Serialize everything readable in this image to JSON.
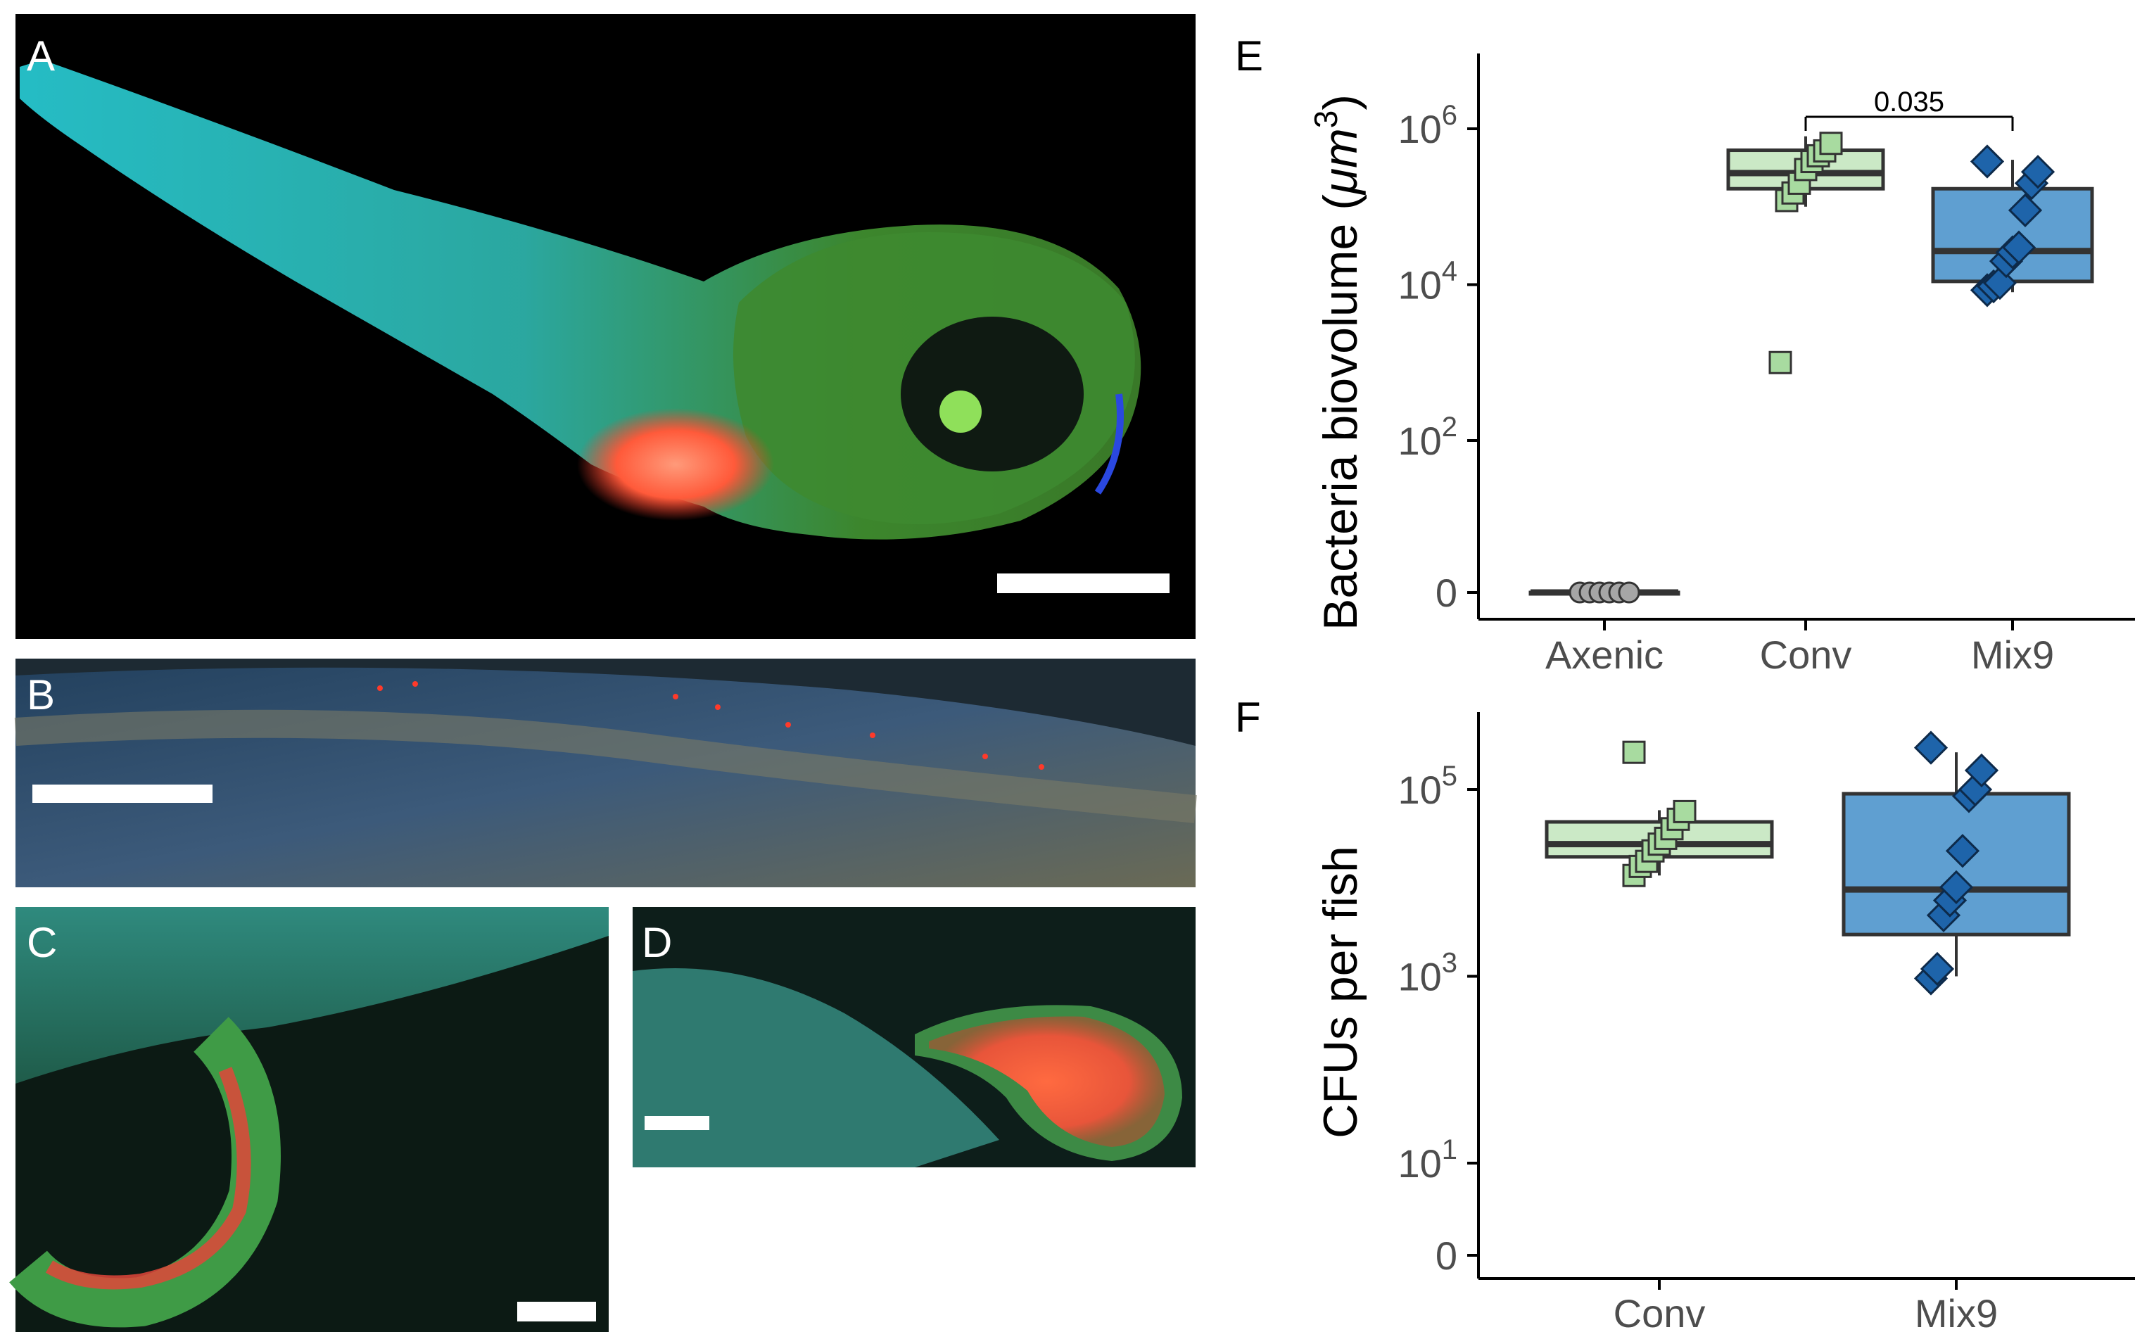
{
  "panels": {
    "A": "A",
    "B": "B",
    "C": "C",
    "D": "D",
    "E": "E",
    "F": "F"
  },
  "colors": {
    "conv_fill": "#cbe9c6",
    "conv_point": "#a8dba0",
    "mix9_fill": "#5f9fd1",
    "mix9_point": "#1e64aa",
    "axenic_point": "#a6a6a6",
    "box_stroke": "#333333",
    "microscopy_background": "#000000",
    "cyan_channel": "#1fc8d2",
    "green_channel": "#3ea63a",
    "red_channel": "#ff4a3a",
    "blue_channel": "#1f3fd0"
  },
  "chart_data": [
    {
      "panel": "E",
      "type": "box",
      "scale": "log10 (0 plotted at bottom)",
      "ylabel_text": "Bacteria biovolume (",
      "ylabel_unit": "μm",
      "ylabel_sup": "3",
      "ylabel_close": ")",
      "yticks": [
        {
          "value": 0,
          "base": "0",
          "exp": ""
        },
        {
          "value": 100,
          "base": "10",
          "exp": "2"
        },
        {
          "value": 10000,
          "base": "10",
          "exp": "4"
        },
        {
          "value": 1000000,
          "base": "10",
          "exp": "6"
        }
      ],
      "categories": [
        "Axenic",
        "Conv",
        "Mix9"
      ],
      "boxes": [
        {
          "group": "Axenic",
          "q1": 0,
          "median": 0,
          "q3": 0,
          "whisker_low": 0,
          "whisker_high": 0
        },
        {
          "group": "Conv",
          "q1": 170000,
          "median": 270000,
          "q3": 530000,
          "whisker_low": 100000,
          "whisker_high": 800000
        },
        {
          "group": "Mix9",
          "q1": 11000,
          "median": 27000,
          "q3": 170000,
          "whisker_low": 8000,
          "whisker_high": 400000
        }
      ],
      "points": [
        {
          "group": "Axenic",
          "values": [
            0,
            0,
            0,
            0,
            0,
            0
          ]
        },
        {
          "group": "Conv",
          "values": [
            1000,
            120000,
            150000,
            200000,
            300000,
            380000,
            450000,
            520000,
            650000
          ]
        },
        {
          "group": "Mix9",
          "values": [
            8500,
            9500,
            10500,
            20000,
            26000,
            30000,
            90000,
            200000,
            280000,
            380000
          ]
        }
      ],
      "annotation": {
        "text": "0.035",
        "from": "Conv",
        "to": "Mix9"
      }
    },
    {
      "panel": "F",
      "type": "box",
      "scale": "log10 (0 plotted at bottom)",
      "ylabel_text": "CFUs per fish",
      "yticks": [
        {
          "value": 0,
          "base": "0",
          "exp": ""
        },
        {
          "value": 10,
          "base": "10",
          "exp": "1"
        },
        {
          "value": 1000,
          "base": "10",
          "exp": "3"
        },
        {
          "value": 100000,
          "base": "10",
          "exp": "5"
        }
      ],
      "categories": [
        "Conv",
        "Mix9"
      ],
      "boxes": [
        {
          "group": "Conv",
          "q1": 19000,
          "median": 26000,
          "q3": 45000,
          "whisker_low": 12000,
          "whisker_high": 60000
        },
        {
          "group": "Mix9",
          "q1": 2800,
          "median": 8500,
          "q3": 90000,
          "whisker_low": 1000,
          "whisker_high": 250000
        }
      ],
      "points": [
        {
          "group": "Conv",
          "values": [
            12000,
            15000,
            17000,
            22000,
            26000,
            30000,
            38000,
            48000,
            58000,
            250000
          ]
        },
        {
          "group": "Mix9",
          "values": [
            950,
            1200,
            4500,
            6500,
            9000,
            22000,
            85000,
            100000,
            160000,
            280000
          ]
        }
      ]
    }
  ]
}
